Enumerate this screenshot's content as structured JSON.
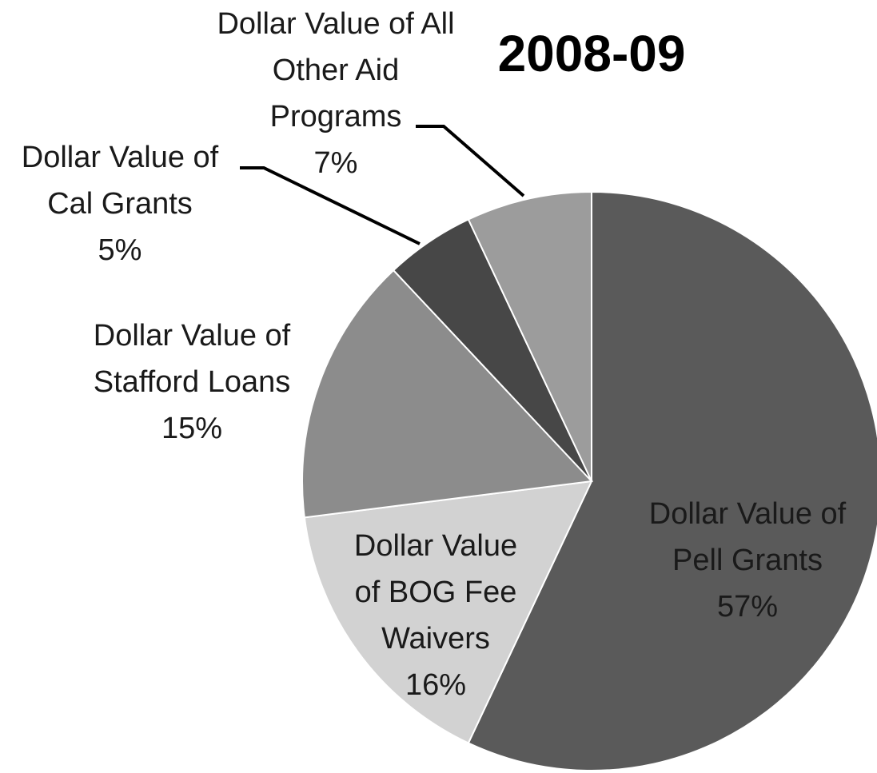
{
  "chart_data": {
    "type": "pie",
    "title": "2008-09",
    "categories": [
      "Dollar Value of Pell Grants",
      "Dollar Value of BOG Fee Waivers",
      "Dollar Value of Stafford Loans",
      "Dollar Value of Cal Grants",
      "Dollar Value of All Other Aid Programs"
    ],
    "values": [
      57,
      16,
      15,
      5,
      7
    ],
    "value_labels": [
      "57%",
      "16%",
      "15%",
      "5%",
      "7%"
    ],
    "colors": [
      "#5a5a5a",
      "#d2d2d2",
      "#8c8c8c",
      "#474747",
      "#9c9c9c"
    ]
  }
}
